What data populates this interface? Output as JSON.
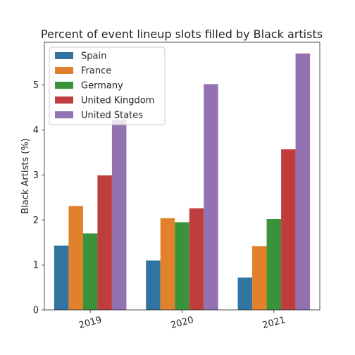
{
  "chart_data": {
    "type": "bar",
    "title": "Percent of event lineup slots filled by Black artists",
    "xlabel": "",
    "ylabel": "Black Artists (%)",
    "categories": [
      "2019",
      "2020",
      "2021"
    ],
    "ylim": [
      0,
      5.95
    ],
    "yticks": [
      "0",
      "1",
      "2",
      "3",
      "4",
      "5"
    ],
    "grid": false,
    "legend_position": "top-left",
    "series": [
      {
        "name": "Spain",
        "color": "#3274a1",
        "values": [
          1.43,
          1.1,
          0.72
        ]
      },
      {
        "name": "France",
        "color": "#e1812c",
        "values": [
          2.31,
          2.04,
          1.42
        ]
      },
      {
        "name": "Germany",
        "color": "#3a923a",
        "values": [
          1.7,
          1.95,
          2.02
        ]
      },
      {
        "name": "United Kingdom",
        "color": "#c03d3e",
        "values": [
          2.99,
          2.26,
          3.57
        ]
      },
      {
        "name": "United States",
        "color": "#9372b2",
        "values": [
          4.23,
          5.02,
          5.7
        ]
      }
    ]
  }
}
